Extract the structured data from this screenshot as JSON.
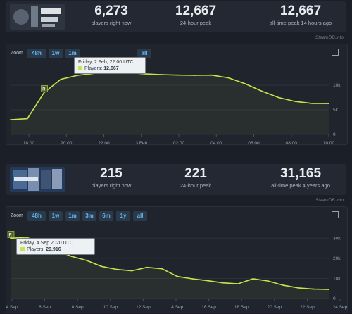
{
  "game1": {
    "stats": [
      {
        "value": "6,273",
        "label": "players right now"
      },
      {
        "value": "12,667",
        "label": "24-hour peak"
      },
      {
        "value": "12,667",
        "label": "all-time peak 14 hours ago"
      }
    ],
    "credit": "SteamDB.info",
    "zoom_label": "Zoom",
    "zoom_buttons": [
      "48h",
      "1w",
      "1m",
      "all"
    ],
    "marker": "R",
    "tooltip": {
      "title": "Friday, 2 Feb, 22:00 UTC",
      "players_label": "Players:",
      "players_value": "12,667"
    },
    "x_ticks": [
      "18:00",
      "20:00",
      "22:00",
      "3 Feb",
      "02:00",
      "04:00",
      "06:00",
      "08:00",
      "10:00"
    ],
    "y_ticks": [
      "10k",
      "5k",
      "0"
    ]
  },
  "game2": {
    "stats": [
      {
        "value": "215",
        "label": "players right now"
      },
      {
        "value": "221",
        "label": "24-hour peak"
      },
      {
        "value": "31,165",
        "label": "all-time peak 4 years ago"
      }
    ],
    "credit": "SteamDB.info",
    "zoom_label": "Zoom",
    "zoom_buttons": [
      "48h",
      "1w",
      "1m",
      "3m",
      "6m",
      "1y",
      "all"
    ],
    "marker": "R",
    "tooltip": {
      "title": "Friday, 4 Sep 2020 UTC",
      "players_label": "Players:",
      "players_value": "29,916"
    },
    "x_ticks": [
      "4 Sep",
      "6 Sep",
      "8 Sep",
      "10 Sep",
      "12 Sep",
      "14 Sep",
      "16 Sep",
      "18 Sep",
      "20 Sep",
      "22 Sep",
      "24 Sep"
    ],
    "y_ticks": [
      "30k",
      "20k",
      "10k",
      "0"
    ]
  },
  "colors": {
    "line": "#cbe34b",
    "accent": "#65b6f2",
    "background": "#1b1f27"
  },
  "chart_data": [
    {
      "type": "line",
      "title": "",
      "xlabel": "",
      "ylabel": "",
      "x": [
        "16:00",
        "17:00",
        "18:00",
        "19:00",
        "20:00",
        "21:00",
        "22:00",
        "23:00",
        "3 Feb",
        "01:00",
        "02:00",
        "03:00",
        "04:00",
        "05:00",
        "06:00",
        "07:00",
        "08:00",
        "09:00",
        "10:00",
        "11:00"
      ],
      "series": [
        {
          "values": [
            3000,
            3200,
            8500,
            11200,
            12000,
            12400,
            12667,
            12550,
            12300,
            12150,
            12050,
            12000,
            12050,
            11500,
            10300,
            8800,
            7500,
            6700,
            6300,
            6273
          ]
        }
      ],
      "ylim": [
        0,
        14000
      ],
      "grid": true
    },
    {
      "type": "line",
      "title": "",
      "xlabel": "",
      "ylabel": "",
      "x": [
        "4 Sep",
        "5 Sep",
        "6 Sep",
        "7 Sep",
        "8 Sep",
        "9 Sep",
        "10 Sep",
        "11 Sep",
        "12 Sep",
        "13 Sep",
        "14 Sep",
        "15 Sep",
        "16 Sep",
        "17 Sep",
        "18 Sep",
        "19 Sep",
        "20 Sep",
        "21 Sep",
        "22 Sep",
        "23 Sep",
        "24 Sep",
        "25 Sep"
      ],
      "series": [
        {
          "values": [
            29916,
            30500,
            28200,
            24000,
            21000,
            19000,
            16000,
            14500,
            13800,
            15500,
            14800,
            11000,
            9800,
            8900,
            7800,
            7300,
            9800,
            8700,
            6600,
            5300,
            4700,
            4500
          ]
        }
      ],
      "ylim": [
        0,
        35000
      ],
      "grid": true
    }
  ]
}
